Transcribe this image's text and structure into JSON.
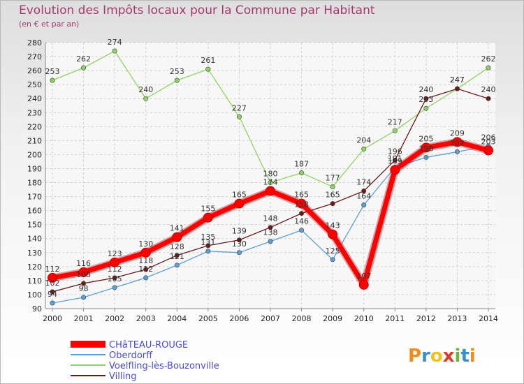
{
  "chart_data": {
    "type": "line",
    "title": "Evolution des Impôts locaux pour la Commune par Habitant",
    "subtitle": "(en € et par an)",
    "xlabel": "",
    "ylabel": "",
    "ylim": [
      90,
      280
    ],
    "yticks": [
      90,
      100,
      110,
      120,
      130,
      140,
      150,
      160,
      170,
      180,
      190,
      200,
      210,
      220,
      230,
      240,
      250,
      260,
      270,
      280
    ],
    "grid": true,
    "x": [
      2000,
      2001,
      2002,
      2003,
      2004,
      2005,
      2006,
      2007,
      2008,
      2009,
      2010,
      2011,
      2012,
      2013,
      2014
    ],
    "series": [
      {
        "name": "CHâTEAU-ROUGE",
        "color": "#ff0000",
        "values": [
          112,
          116,
          123,
          130,
          141,
          155,
          165,
          174,
          165,
          143,
          107,
          189,
          205,
          209,
          203
        ]
      },
      {
        "name": "Oberdorff",
        "color": "#5b9fd6",
        "values": [
          94,
          98,
          105,
          112,
          121,
          131,
          130,
          138,
          146,
          125,
          164,
          191,
          198,
          202,
          206
        ]
      },
      {
        "name": "Voelfling-lès-Bouzonville",
        "color": "#8fd460",
        "values": [
          253,
          262,
          274,
          240,
          253,
          261,
          227,
          180,
          187,
          177,
          204,
          217,
          233,
          247,
          262
        ]
      },
      {
        "name": "Villing",
        "color": "#6b1a1a",
        "values": [
          102,
          108,
          112,
          118,
          128,
          135,
          139,
          148,
          158,
          165,
          174,
          196,
          240,
          247,
          240
        ]
      }
    ],
    "legend_position": "bottom-left"
  },
  "logo": {
    "text": "Proxiti",
    "letters": [
      "P",
      "r",
      "o",
      "x",
      "i",
      "t",
      "i"
    ]
  }
}
